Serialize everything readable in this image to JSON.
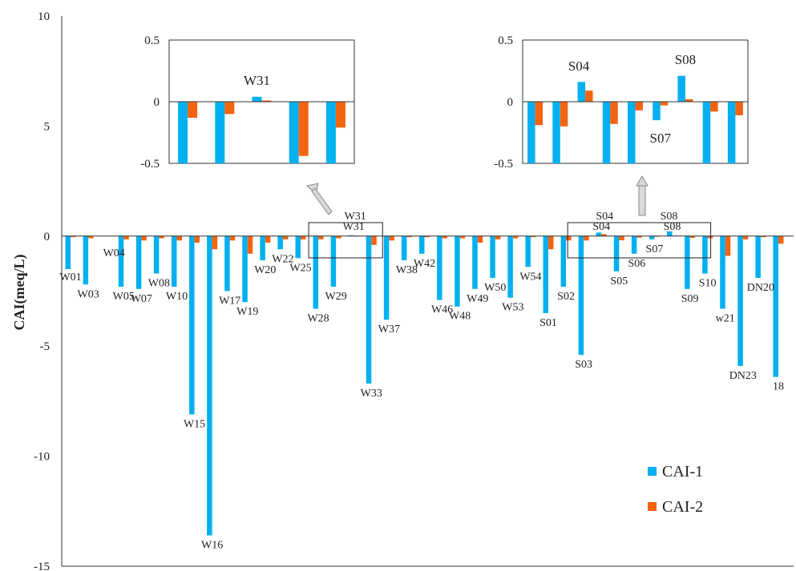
{
  "chart_data": {
    "type": "bar",
    "ylabel": "CAI(meq/L)",
    "ylim": [
      -15,
      10
    ],
    "yticks": [
      10,
      5,
      0,
      -5,
      -10,
      -15
    ],
    "colors": {
      "CAI-1": "#00b0f0",
      "CAI-2": "#f4640f"
    },
    "series": [
      {
        "name": "CAI-1"
      },
      {
        "name": "CAI-2"
      }
    ],
    "points": [
      {
        "label": "W01",
        "v1": -1.5,
        "v2": -0.05
      },
      {
        "label": "W03",
        "v1": -2.2,
        "v2": -0.1
      },
      {
        "label": "W04",
        "v1": 0,
        "v2": 0
      },
      {
        "label": "W05",
        "v1": -2.3,
        "v2": -0.15
      },
      {
        "label": "W07",
        "v1": -2.4,
        "v2": -0.2
      },
      {
        "label": "W08",
        "v1": -1.7,
        "v2": -0.1
      },
      {
        "label": "W10",
        "v1": -2.3,
        "v2": -0.2
      },
      {
        "label": "W15",
        "v1": -8.1,
        "v2": -0.3
      },
      {
        "label": "W16",
        "v1": -13.6,
        "v2": -0.6
      },
      {
        "label": "W17",
        "v1": -2.5,
        "v2": -0.2
      },
      {
        "label": "W19",
        "v1": -3.0,
        "v2": -0.8
      },
      {
        "label": "W20",
        "v1": -1.1,
        "v2": -0.3
      },
      {
        "label": "W22",
        "v1": -0.6,
        "v2": -0.15
      },
      {
        "label": "W25",
        "v1": -1.0,
        "v2": -0.15
      },
      {
        "label": "W28",
        "v1": -3.3,
        "v2": -0.15
      },
      {
        "label": "W29",
        "v1": -2.3,
        "v2": -0.1
      },
      {
        "label": "W31",
        "v1": 0.04,
        "v2": 0.01
      },
      {
        "label": "W33",
        "v1": -6.7,
        "v2": -0.4
      },
      {
        "label": "W37",
        "v1": -3.8,
        "v2": -0.2
      },
      {
        "label": "W38",
        "v1": -1.1,
        "v2": -0.05
      },
      {
        "label": "W42",
        "v1": -0.8,
        "v2": -0.05
      },
      {
        "label": "W46",
        "v1": -2.9,
        "v2": -0.1
      },
      {
        "label": "W48",
        "v1": -3.2,
        "v2": -0.1
      },
      {
        "label": "W49",
        "v1": -2.4,
        "v2": -0.3
      },
      {
        "label": "W50",
        "v1": -1.9,
        "v2": -0.15
      },
      {
        "label": "W53",
        "v1": -2.8,
        "v2": -0.1
      },
      {
        "label": "W54",
        "v1": -1.4,
        "v2": -0.05
      },
      {
        "label": "S01",
        "v1": -3.5,
        "v2": -0.6
      },
      {
        "label": "S02",
        "v1": -2.3,
        "v2": -0.2
      },
      {
        "label": "S03",
        "v1": -5.4,
        "v2": -0.2
      },
      {
        "label": "S04",
        "v1": 0.16,
        "v2": 0.09
      },
      {
        "label": "S05",
        "v1": -1.6,
        "v2": -0.19
      },
      {
        "label": "S06",
        "v1": -0.8,
        "v2": -0.07
      },
      {
        "label": "S07",
        "v1": -0.15,
        "v2": -0.03
      },
      {
        "label": "S08",
        "v1": 0.21,
        "v2": 0.02
      },
      {
        "label": "S09",
        "v1": -2.4,
        "v2": -0.08
      },
      {
        "label": "S10",
        "v1": -1.7,
        "v2": -0.1
      },
      {
        "label": "w21",
        "v1": -3.3,
        "v2": -0.9
      },
      {
        "label": "DN23",
        "v1": -5.9,
        "v2": -0.15
      },
      {
        "label": "DN20",
        "v1": -1.9,
        "v2": -0.05
      },
      {
        "label": "18",
        "v1": -6.4,
        "v2": -0.35
      }
    ],
    "insets": [
      {
        "ylim": [
          -0.5,
          0.5
        ],
        "yticks": [
          "0.5",
          "0",
          "-0.5"
        ],
        "annotations": [
          {
            "text": "W31"
          }
        ],
        "points": [
          {
            "v1": -0.5,
            "v2": -0.13
          },
          {
            "v1": -0.5,
            "v2": -0.1
          },
          {
            "v1": 0.04,
            "v2": 0.01
          },
          {
            "v1": -0.5,
            "v2": -0.44
          },
          {
            "v1": -0.5,
            "v2": -0.21
          }
        ]
      },
      {
        "ylim": [
          -0.5,
          0.5
        ],
        "yticks": [
          "0.5",
          "0",
          "-0.5"
        ],
        "annotations": [
          {
            "text": "S04"
          },
          {
            "text": "S08"
          },
          {
            "text": "S07"
          }
        ],
        "points": [
          {
            "v1": -0.5,
            "v2": -0.19
          },
          {
            "v1": -0.5,
            "v2": -0.2
          },
          {
            "v1": 0.16,
            "v2": 0.09
          },
          {
            "v1": -0.5,
            "v2": -0.18
          },
          {
            "v1": -0.5,
            "v2": -0.07
          },
          {
            "v1": -0.15,
            "v2": -0.03
          },
          {
            "v1": 0.21,
            "v2": 0.02
          },
          {
            "v1": -0.5,
            "v2": -0.08
          },
          {
            "v1": -0.5,
            "v2": -0.11
          }
        ]
      }
    ],
    "callouts": [
      "W31",
      "S04",
      "S08"
    ],
    "legend": {
      "position": "bottom-right",
      "entries": [
        {
          "label": "CAI-1"
        },
        {
          "label": "CAI-2"
        }
      ]
    }
  }
}
